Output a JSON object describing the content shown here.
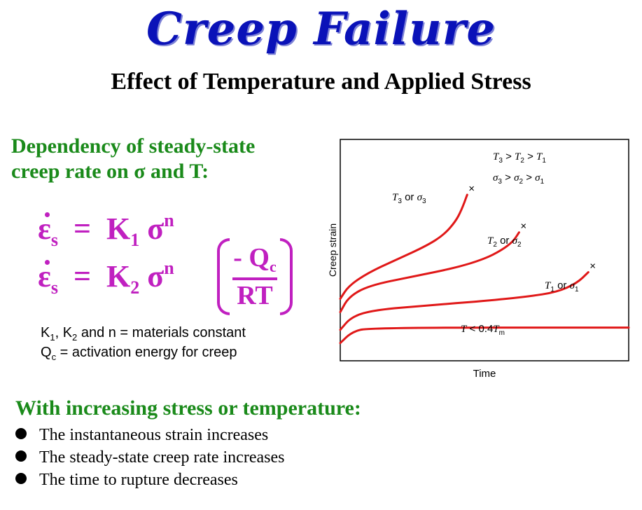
{
  "title": "Creep Failure",
  "subtitle": "Effect of Temperature and Applied Stress",
  "dependency": {
    "line1": "Dependency of steady-state",
    "line2": "creep rate on σ and T:"
  },
  "equations": {
    "eq1": {
      "strain": "ε",
      "strain_sub": "s",
      "equals": "=",
      "const": "K",
      "const_sub": "1",
      "stress": "σ",
      "exponent": "n"
    },
    "eq2": {
      "strain": "ε",
      "strain_sub": "s",
      "equals": "=",
      "const": "K",
      "const_sub": "2",
      "stress": "σ",
      "exponent": "n",
      "numerator": "- Q",
      "numerator_sub": "c",
      "denominator": "RT"
    }
  },
  "notes": {
    "n1_a": "K",
    "n1_a_sub": "1",
    "n1_b": ", K",
    "n1_b_sub": "2",
    "n1_c": " and n = materials constant",
    "n2_a": "Q",
    "n2_a_sub": "c",
    "n2_b": " = activation energy for creep"
  },
  "increasing": {
    "heading": "With increasing stress or temperature:",
    "bullets": [
      "The instantaneous strain increases",
      "The steady-state creep rate increases",
      "The time to rupture decreases"
    ]
  },
  "chart_data": {
    "type": "line",
    "xlabel": "Time",
    "ylabel": "Creep strain",
    "annotations": {
      "temp_order": "T3 > T2 > T1",
      "stress_order": "σ3 > σ2 > σ1"
    },
    "series": [
      {
        "name": "T3 or σ3",
        "points": [
          [
            0,
            0.28
          ],
          [
            0.03,
            0.34
          ],
          [
            0.1,
            0.4
          ],
          [
            0.2,
            0.46
          ],
          [
            0.3,
            0.52
          ],
          [
            0.36,
            0.57
          ],
          [
            0.4,
            0.63
          ],
          [
            0.42,
            0.68
          ],
          [
            0.44,
            0.75
          ]
        ],
        "rupture": true
      },
      {
        "name": "T2 or σ2",
        "points": [
          [
            0,
            0.22
          ],
          [
            0.03,
            0.29
          ],
          [
            0.1,
            0.34
          ],
          [
            0.25,
            0.38
          ],
          [
            0.4,
            0.42
          ],
          [
            0.5,
            0.46
          ],
          [
            0.56,
            0.5
          ],
          [
            0.6,
            0.54
          ],
          [
            0.62,
            0.58
          ]
        ],
        "rupture": true
      },
      {
        "name": "T1 or σ1",
        "points": [
          [
            0,
            0.14
          ],
          [
            0.04,
            0.2
          ],
          [
            0.12,
            0.23
          ],
          [
            0.3,
            0.25
          ],
          [
            0.5,
            0.27
          ],
          [
            0.65,
            0.29
          ],
          [
            0.75,
            0.31
          ],
          [
            0.82,
            0.35
          ],
          [
            0.86,
            0.4
          ]
        ],
        "rupture": true
      },
      {
        "name": "T < 0.4Tm",
        "points": [
          [
            0,
            0.08
          ],
          [
            0.04,
            0.13
          ],
          [
            0.1,
            0.15
          ],
          [
            1.0,
            0.15
          ]
        ],
        "rupture": false
      }
    ]
  },
  "chart_labels": {
    "t3": {
      "a": "T",
      "sub": "3",
      "b": " or ",
      "c": "σ",
      "sub2": "3"
    },
    "t2": {
      "a": "T",
      "sub": "2",
      "b": " or ",
      "c": "σ",
      "sub2": "2"
    },
    "t1": {
      "a": "T",
      "sub": "1",
      "b": " or ",
      "c": "σ",
      "sub2": "1"
    },
    "t0": {
      "a": "T",
      "b": " < 0.4",
      "c": "T",
      "sub": "m"
    },
    "order1": {
      "a": "T",
      "s1": "3",
      "b": " > ",
      "c": "T",
      "s2": "2",
      "d": " > ",
      "e": "T",
      "s3": "1"
    },
    "order2": {
      "a": "σ",
      "s1": "3",
      "b": " > ",
      "c": "σ",
      "s2": "2",
      "d": " > ",
      "e": "σ",
      "s3": "1"
    },
    "rupture_mark": "×"
  },
  "colors": {
    "title": "#0a12b8",
    "green": "#1a8a1a",
    "magenta": "#c020c0",
    "curve": "#e01818"
  }
}
